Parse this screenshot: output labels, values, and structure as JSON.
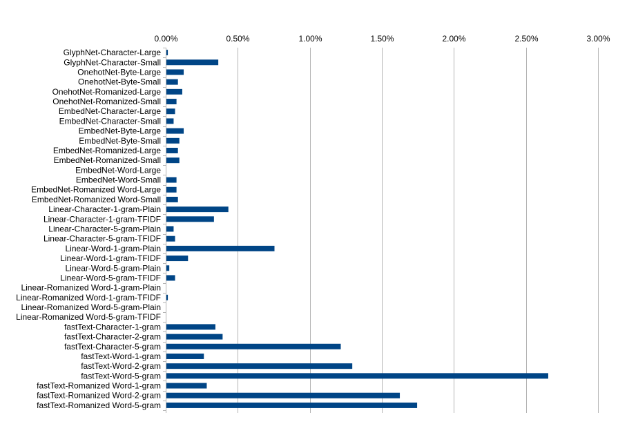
{
  "chart_data": {
    "type": "bar",
    "orientation": "horizontal",
    "title": "",
    "xlabel": "",
    "ylabel": "",
    "xlim": [
      0,
      3
    ],
    "x_ticks": [
      0,
      0.5,
      1,
      1.5,
      2,
      2.5,
      3
    ],
    "x_tick_labels": [
      "0.00%",
      "0.50%",
      "1.00%",
      "1.50%",
      "2.00%",
      "2.50%",
      "3.00%"
    ],
    "x_axis_position": "top",
    "grid": true,
    "bar_color": "#004586",
    "value_unit": "percent",
    "categories": [
      "GlyphNet-Character-Large",
      "GlyphNet-Character-Small",
      "OnehotNet-Byte-Large",
      "OnehotNet-Byte-Small",
      "OnehotNet-Romanized-Large",
      "OnehotNet-Romanized-Small",
      "EmbedNet-Character-Large",
      "EmbedNet-Character-Small",
      "EmbedNet-Byte-Large",
      "EmbedNet-Byte-Small",
      "EmbedNet-Romanized-Large",
      "EmbedNet-Romanized-Small",
      "EmbedNet-Word-Large",
      "EmbedNet-Word-Small",
      "EmbedNet-Romanized Word-Large",
      "EmbedNet-Romanized Word-Small",
      "Linear-Character-1-gram-Plain",
      "Linear-Character-1-gram-TFIDF",
      "Linear-Character-5-gram-Plain",
      "Linear-Character-5-gram-TFIDF",
      "Linear-Word-1-gram-Plain",
      "Linear-Word-1-gram-TFIDF",
      "Linear-Word-5-gram-Plain",
      "Linear-Word-5-gram-TFIDF",
      "Linear-Romanized Word-1-gram-Plain",
      "Linear-Romanized Word-1-gram-TFIDF",
      "Linear-Romanized Word-5-gram-Plain",
      "Linear-Romanized Word-5-gram-TFIDF",
      "fastText-Character-1-gram",
      "fastText-Character-2-gram",
      "fastText-Character-5-gram",
      "fastText-Word-1-gram",
      "fastText-Word-2-gram",
      "fastText-Word-5-gram",
      "fastText-Romanized Word-1-gram",
      "fastText-Romanized Word-2-gram",
      "fastText-Romanized Word-5-gram"
    ],
    "values": [
      0.01,
      0.36,
      0.12,
      0.08,
      0.11,
      0.07,
      0.06,
      0.05,
      0.12,
      0.09,
      0.08,
      0.09,
      0.0,
      0.07,
      0.07,
      0.08,
      0.43,
      0.33,
      0.05,
      0.06,
      0.75,
      0.15,
      0.02,
      0.06,
      0.0,
      0.01,
      0.0,
      0.0,
      0.34,
      0.39,
      1.21,
      0.26,
      1.29,
      2.65,
      0.28,
      1.62,
      1.74
    ]
  }
}
